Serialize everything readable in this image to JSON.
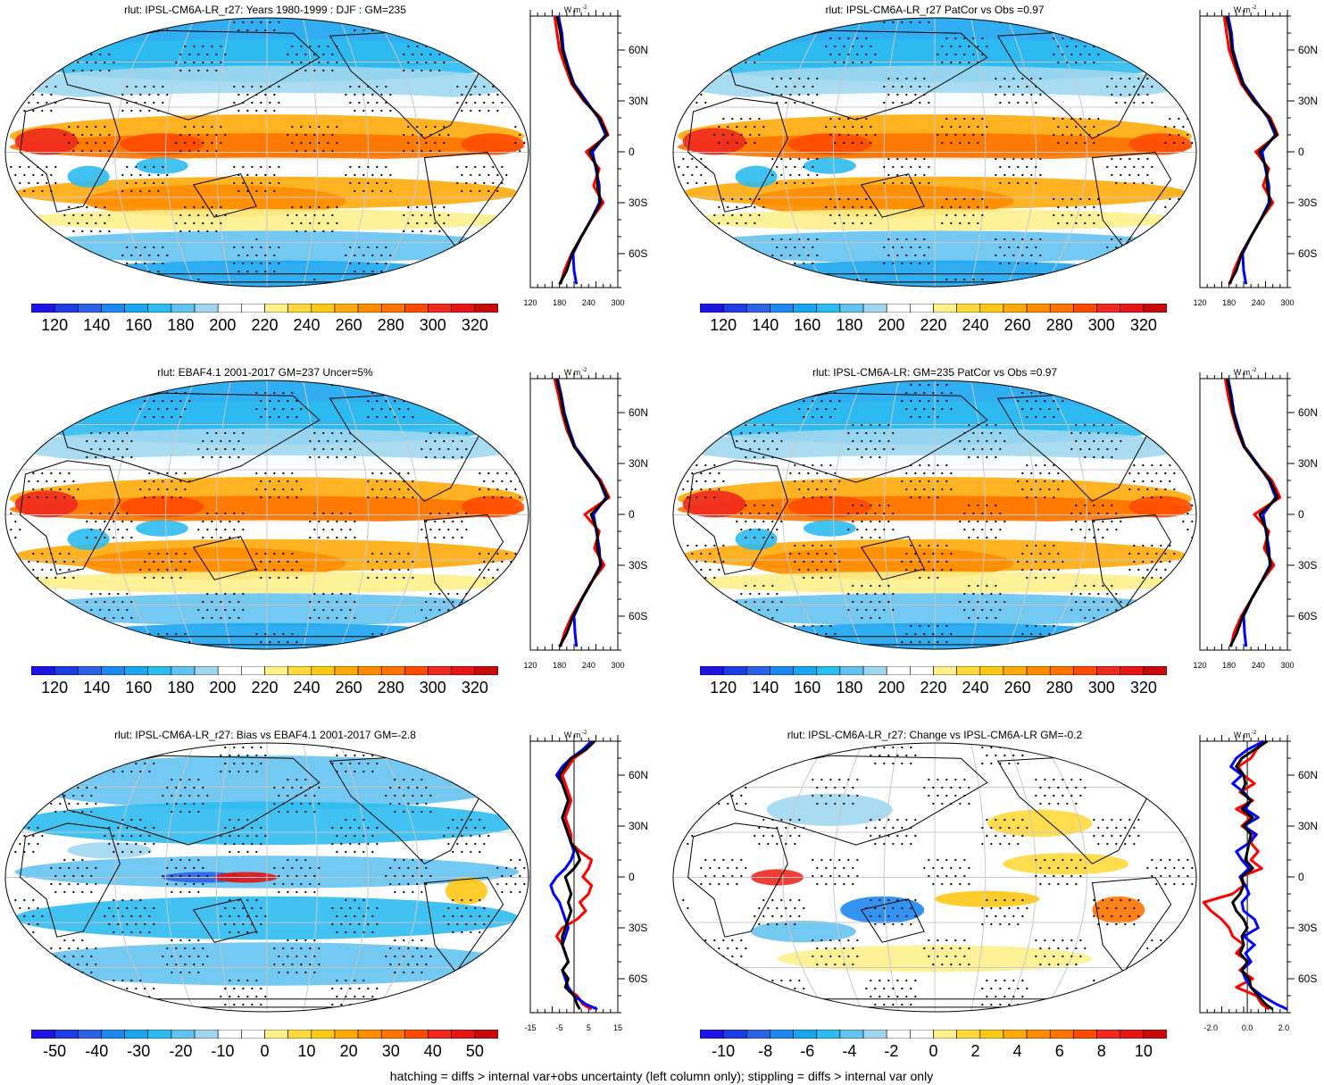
{
  "footer": "hatching = diffs > internal var+obs uncertainty (left column only); stippling = diffs > internal var only",
  "colorbars": {
    "abs": {
      "colors": [
        "#1e14e6",
        "#1e3ce6",
        "#2d62e6",
        "#1e87f0",
        "#19a5f0",
        "#2dbbf0",
        "#64c3f0",
        "#a0d7f0",
        "#ffffff",
        "#ffffff",
        "#fff08c",
        "#ffd93c",
        "#ffc814",
        "#ffaa0a",
        "#ff8c00",
        "#ff7300",
        "#ff4b00",
        "#f0281e",
        "#e61414",
        "#c80a0a"
      ],
      "labels": [
        "120",
        "140",
        "160",
        "180",
        "200",
        "220",
        "240",
        "260",
        "280",
        "300",
        "320"
      ]
    },
    "bias": {
      "colors": [
        "#1e14e6",
        "#1e3ce6",
        "#2d62e6",
        "#1e87f0",
        "#19a5f0",
        "#2dbbf0",
        "#64c3f0",
        "#a0d7f0",
        "#ffffff",
        "#ffffff",
        "#fff08c",
        "#ffd93c",
        "#ffc814",
        "#ffaa0a",
        "#ff8c00",
        "#ff7300",
        "#ff4b00",
        "#f0281e",
        "#e61414",
        "#c80a0a"
      ],
      "labels": [
        "-50",
        "-40",
        "-30",
        "-20",
        "-10",
        "0",
        "10",
        "20",
        "30",
        "40",
        "50"
      ]
    },
    "change": {
      "colors": [
        "#1e14e6",
        "#1e3ce6",
        "#2d62e6",
        "#1e87f0",
        "#19a5f0",
        "#2dbbf0",
        "#64c3f0",
        "#a0d7f0",
        "#ffffff",
        "#ffffff",
        "#fff08c",
        "#ffd93c",
        "#ffc814",
        "#ffaa0a",
        "#ff8c00",
        "#ff7300",
        "#ff4b00",
        "#f0281e",
        "#e61414",
        "#c80a0a"
      ],
      "labels": [
        "-10",
        "-8",
        "-6",
        "-4",
        "-2",
        "0",
        "2",
        "4",
        "6",
        "8",
        "10"
      ]
    }
  },
  "profile_common": {
    "lat_labels": [
      "60N",
      "30N",
      "0",
      "30S",
      "60S"
    ],
    "units": "W m",
    "units_exp": "-2"
  },
  "chart_data": [
    {
      "type": "heatmap",
      "title": "rlut: IPSL-CM6A-LR_r27: Years 1980-1999 : DJF : GM=235",
      "colorbar": "abs",
      "profile": {
        "xticks": [
          "120",
          "180",
          "240",
          "300"
        ],
        "xlim": [
          120,
          300
        ],
        "zero_line": false,
        "lat": [
          80,
          70,
          60,
          50,
          40,
          30,
          20,
          10,
          0,
          -10,
          -20,
          -30,
          -40,
          -50,
          -60,
          -70,
          -78
        ],
        "series": [
          {
            "color": "#ff0000",
            "values": [
              170,
              175,
              180,
              192,
              205,
              230,
              265,
              280,
              235,
              262,
              250,
              270,
              245,
              225,
              205,
              190,
              182
            ]
          },
          {
            "color": "#0000ff",
            "values": [
              178,
              185,
              188,
              198,
              210,
              235,
              260,
              275,
              248,
              255,
              262,
              262,
              245,
              225,
              208,
              210,
              215
            ]
          },
          {
            "color": "#000000",
            "values": [
              175,
              182,
              186,
              196,
              208,
              232,
              262,
              278,
              242,
              258,
              258,
              265,
              245,
              225,
              206,
              195,
              180
            ]
          }
        ]
      }
    },
    {
      "type": "heatmap",
      "title": "rlut: IPSL-CM6A-LR_r27 PatCor vs Obs =0.97",
      "colorbar": "abs",
      "profile": {
        "xticks": [
          "120",
          "180",
          "240",
          "300"
        ],
        "xlim": [
          120,
          300
        ],
        "zero_line": false,
        "lat": [
          80,
          70,
          60,
          50,
          40,
          30,
          20,
          10,
          0,
          -10,
          -20,
          -30,
          -40,
          -50,
          -60,
          -70,
          -78
        ],
        "series": [
          {
            "color": "#ff0000",
            "values": [
              170,
              175,
              180,
              192,
              205,
              230,
              265,
              280,
              235,
              262,
              250,
              270,
              245,
              225,
              205,
              190,
              182
            ]
          },
          {
            "color": "#0000ff",
            "values": [
              178,
              185,
              188,
              198,
              210,
              235,
              260,
              275,
              248,
              255,
              262,
              262,
              245,
              225,
              208,
              210,
              215
            ]
          },
          {
            "color": "#000000",
            "values": [
              175,
              182,
              186,
              196,
              208,
              232,
              262,
              278,
              242,
              258,
              258,
              265,
              245,
              225,
              206,
              195,
              180
            ]
          }
        ]
      }
    },
    {
      "type": "heatmap",
      "title": "rlut: EBAF4.1 2001-2017 GM=237 Uncer=5%",
      "colorbar": "abs",
      "profile": {
        "xticks": [
          "120",
          "180",
          "240",
          "300"
        ],
        "xlim": [
          120,
          300
        ],
        "zero_line": false,
        "lat": [
          80,
          70,
          60,
          50,
          40,
          30,
          20,
          10,
          0,
          -10,
          -20,
          -30,
          -40,
          -50,
          -60,
          -70,
          -78
        ],
        "series": [
          {
            "color": "#ff0000",
            "values": [
              170,
              178,
              185,
              195,
              210,
              235,
              265,
              282,
              232,
              262,
              252,
              272,
              245,
              225,
              205,
              190,
              182
            ]
          },
          {
            "color": "#0000ff",
            "values": [
              176,
              184,
              190,
              200,
              212,
              238,
              262,
              276,
              250,
              256,
              262,
              264,
              246,
              226,
              210,
              212,
              215
            ]
          },
          {
            "color": "#000000",
            "values": [
              174,
              182,
              188,
              198,
              210,
              236,
              262,
              279,
              245,
              258,
              258,
              266,
              246,
              226,
              208,
              195,
              180
            ]
          }
        ]
      }
    },
    {
      "type": "heatmap",
      "title": "rlut: IPSL-CM6A-LR: GM=235 PatCor vs Obs =0.97",
      "colorbar": "abs",
      "profile": {
        "xticks": [
          "120",
          "180",
          "240",
          "300"
        ],
        "xlim": [
          120,
          300
        ],
        "zero_line": false,
        "lat": [
          80,
          70,
          60,
          50,
          40,
          30,
          20,
          10,
          0,
          -10,
          -20,
          -30,
          -40,
          -50,
          -60,
          -70,
          -78
        ],
        "series": [
          {
            "color": "#ff0000",
            "values": [
              172,
              178,
              186,
              196,
              210,
              236,
              268,
              285,
              232,
              262,
              252,
              272,
              246,
              226,
              205,
              190,
              184
            ]
          },
          {
            "color": "#0000ff",
            "values": [
              178,
              185,
              190,
              200,
              212,
              238,
              262,
              276,
              250,
              256,
              262,
              264,
              246,
              226,
              210,
              212,
              215
            ]
          },
          {
            "color": "#000000",
            "values": [
              176,
              183,
              188,
              198,
              211,
              236,
              264,
              280,
              243,
              258,
              258,
              266,
              246,
              226,
              208,
              196,
              182
            ]
          }
        ]
      }
    },
    {
      "type": "heatmap",
      "title": "rlut: IPSL-CM6A-LR_r27: Bias vs EBAF4.1 2001-2017 GM=-2.8",
      "colorbar": "bias",
      "profile": {
        "xticks": [
          "-15",
          "-5",
          "5",
          "15"
        ],
        "xlim": [
          -15,
          15
        ],
        "zero_line": true,
        "lat": [
          80,
          75,
          70,
          65,
          60,
          55,
          50,
          45,
          40,
          35,
          30,
          25,
          20,
          15,
          10,
          5,
          0,
          -5,
          -10,
          -15,
          -20,
          -25,
          -30,
          -35,
          -40,
          -45,
          -50,
          -55,
          -60,
          -65,
          -70,
          -75,
          -78
        ],
        "series": [
          {
            "color": "#ff0000",
            "values": [
              7,
              4,
              0,
              -2,
              -4,
              -3,
              -2,
              -1,
              -2,
              -3,
              -2,
              -1,
              -1,
              2,
              6,
              5,
              3,
              6,
              5,
              2,
              4,
              1,
              -4,
              -6,
              -4,
              -3,
              -2,
              -4,
              -2,
              -3,
              1,
              3,
              6
            ]
          },
          {
            "color": "#0000ff",
            "values": [
              6,
              3,
              -1,
              -4,
              -6,
              -4,
              -3,
              -2,
              -3,
              -4,
              -3,
              -2,
              -1,
              0,
              -1,
              -3,
              -6,
              -8,
              -7,
              -5,
              -4,
              -3,
              -2,
              -3,
              -4,
              -3,
              -2,
              -4,
              -3,
              -2,
              0,
              4,
              8
            ]
          },
          {
            "color": "#000000",
            "values": [
              7,
              4,
              -1,
              -3,
              -5,
              -4,
              -3,
              -2,
              -3,
              -4,
              -3,
              -2,
              -1,
              1,
              2,
              0,
              -3,
              -2,
              -1,
              -2,
              -1,
              -2,
              -3,
              -4,
              -4,
              -3,
              -2,
              -4,
              -2,
              -3,
              0,
              1,
              2
            ]
          }
        ]
      }
    },
    {
      "type": "heatmap",
      "title": "rlut: IPSL-CM6A-LR_r27: Change vs IPSL-CM6A-LR GM=-0.2",
      "colorbar": "change",
      "profile": {
        "xticks": [
          "-2.0",
          "0.0",
          "2.0"
        ],
        "xlim": [
          -2.6,
          2.2
        ],
        "zero_line": true,
        "lat": [
          80,
          75,
          70,
          65,
          60,
          55,
          50,
          45,
          40,
          35,
          30,
          25,
          20,
          15,
          10,
          5,
          0,
          -5,
          -10,
          -15,
          -20,
          -25,
          -30,
          -35,
          -40,
          -45,
          -50,
          -55,
          -60,
          -65,
          -70,
          -75,
          -78
        ],
        "series": [
          {
            "color": "#ff0000",
            "values": [
              1.0,
              0.5,
              0.2,
              -0.5,
              -0.2,
              0.4,
              -0.4,
              0.3,
              -0.6,
              0.2,
              -0.3,
              0.4,
              0.2,
              0.6,
              0.2,
              0.8,
              -0.4,
              -0.2,
              -0.8,
              -2.4,
              -2.0,
              -1.4,
              -1.0,
              -0.8,
              -0.2,
              -0.6,
              0.1,
              -0.4,
              0.3,
              -0.6,
              0.5,
              0.8,
              1.2
            ]
          },
          {
            "color": "#0000ff",
            "values": [
              0.9,
              0.0,
              -0.6,
              -0.9,
              -0.3,
              -0.8,
              -0.2,
              0.2,
              -0.1,
              0.6,
              -0.2,
              0.5,
              0.1,
              -0.6,
              -0.3,
              0.1,
              -0.4,
              -0.1,
              0.1,
              -0.3,
              -0.2,
              0.4,
              0.6,
              -0.2,
              0.4,
              -0.1,
              0.2,
              -0.3,
              -0.1,
              0.2,
              0.8,
              1.6,
              2.2
            ]
          },
          {
            "color": "#000000",
            "values": [
              1.1,
              0.4,
              -0.3,
              -0.6,
              -0.2,
              -0.1,
              -0.3,
              0.2,
              -0.3,
              0.3,
              -0.2,
              0.2,
              0.1,
              0.0,
              -0.1,
              0.3,
              -0.3,
              -0.2,
              -0.4,
              -0.8,
              -0.6,
              -0.2,
              0.0,
              -0.3,
              -0.2,
              -0.4,
              0.0,
              -0.3,
              0.1,
              0.2,
              0.6,
              1.0,
              1.4
            ]
          }
        ]
      }
    }
  ]
}
